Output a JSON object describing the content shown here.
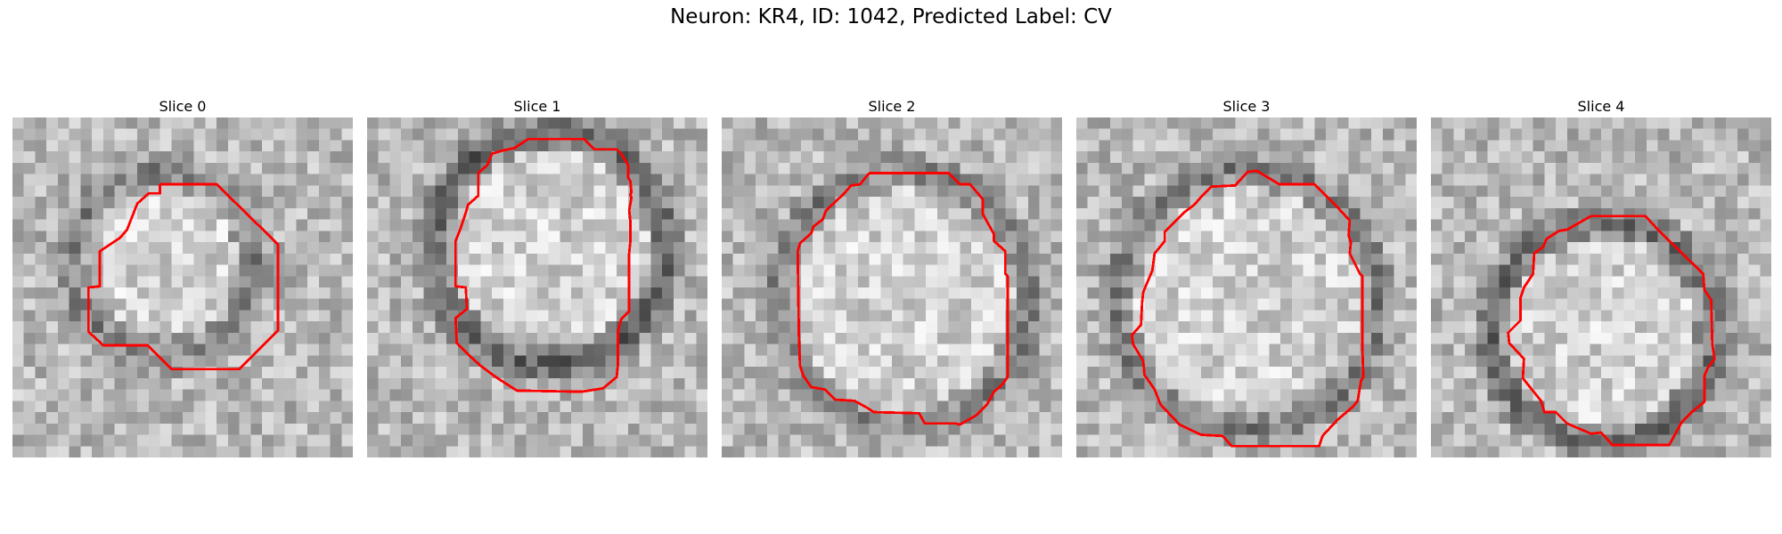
{
  "figure": {
    "title": "Neuron: KR4, ID: 1042, Predicted Label: CV"
  },
  "panels": [
    {
      "title": "Slice 0",
      "seed": 11,
      "darkRing": 0.55
    },
    {
      "title": "Slice 1",
      "seed": 23,
      "darkRing": 0.75
    },
    {
      "title": "Slice 2",
      "seed": 37,
      "darkRing": 0.55
    },
    {
      "title": "Slice 3",
      "seed": 41,
      "darkRing": 0.6
    },
    {
      "title": "Slice 4",
      "seed": 59,
      "darkRing": 0.7
    }
  ],
  "colors": {
    "contour": "#ff0000"
  }
}
